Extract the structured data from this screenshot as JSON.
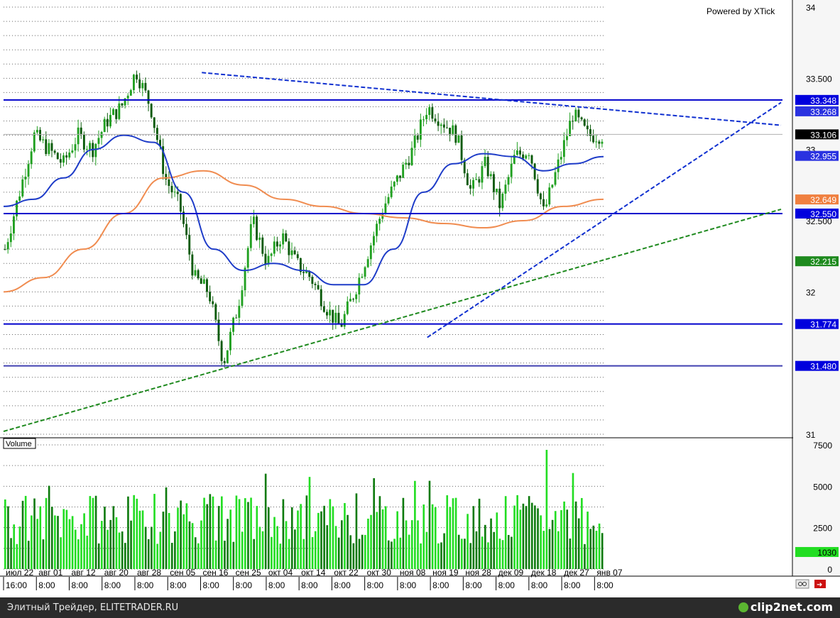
{
  "chart_data": [
    {
      "type": "candlestick",
      "title": "",
      "watermark": "Powered by XTick",
      "ylim": [
        31,
        34
      ],
      "y_ticks": [
        "34",
        "33.500",
        "33",
        "32.500",
        "32",
        "31"
      ],
      "x_date_labels": [
        "июл 22",
        "авг 01",
        "авг 12",
        "авг 20",
        "авг 28",
        "сен 05",
        "сен 16",
        "сен 25",
        "окт 04",
        "окт 14",
        "окт 22",
        "окт 30",
        "ноя 08",
        "ноя 19",
        "ноя 28",
        "дек 09",
        "дек 18",
        "дек 27",
        "янв 07"
      ],
      "x_time_labels": [
        "16:00",
        "8:00",
        "8:00",
        "8:00",
        "8:00",
        "8:00",
        "8:00",
        "8:00",
        "8:00",
        "8:00",
        "8:00",
        "8:00",
        "8:00",
        "8:00",
        "8:00",
        "8:00",
        "8:00",
        "8:00",
        "8:00"
      ],
      "price_waypoints": [
        32.3,
        32.7,
        33.1,
        33.0,
        32.9,
        33.1,
        33.0,
        33.2,
        33.3,
        33.55,
        33.3,
        32.8,
        32.6,
        32.1,
        32.0,
        31.5,
        31.9,
        32.5,
        32.2,
        32.4,
        32.2,
        32.1,
        31.9,
        31.75,
        32.0,
        32.3,
        32.6,
        32.8,
        33.0,
        33.3,
        33.2,
        33.1,
        32.7,
        32.9,
        32.6,
        32.95,
        33.0,
        32.55,
        32.9,
        33.25,
        33.1,
        33.1
      ],
      "ma_blue": [
        32.6,
        32.65,
        32.8,
        33.0,
        33.1,
        33.05,
        32.7,
        32.3,
        32.15,
        32.2,
        32.15,
        32.05,
        32.05,
        32.3,
        32.7,
        32.9,
        32.97,
        32.95,
        32.85,
        32.9,
        32.95
      ],
      "ma_orange": [
        32.0,
        32.1,
        32.3,
        32.55,
        32.8,
        32.85,
        32.75,
        32.65,
        32.6,
        32.55,
        32.52,
        32.48,
        32.45,
        32.5,
        32.6,
        32.65
      ],
      "horizontal_levels": [
        {
          "price": "33.348",
          "color": "#0000cc",
          "label_color": "#ffffff",
          "bg": "#0000dd"
        },
        {
          "price": "33.268",
          "color": "none",
          "label_color": "#ffffff",
          "bg": "#2a32e0"
        },
        {
          "price": "33.106",
          "color": "#b0b0b0",
          "label_color": "#ffffff",
          "bg": "#000000"
        },
        {
          "price": "32.955",
          "color": "none",
          "label_color": "#ffffff",
          "bg": "#2a32e0"
        },
        {
          "price": "32.649",
          "color": "none",
          "label_color": "#ffffff",
          "bg": "#f08040"
        },
        {
          "price": "32.550",
          "color": "#0000cc",
          "label_color": "#ffffff",
          "bg": "#0000dd"
        },
        {
          "price": "32.215",
          "color": "none",
          "label_color": "#ffffff",
          "bg": "#1e8a1e"
        },
        {
          "price": "31.774",
          "color": "#0000cc",
          "label_color": "#ffffff",
          "bg": "#0000dd"
        },
        {
          "price": "31.480",
          "color": "#4040b0",
          "label_color": "#ffffff",
          "bg": "#0000dd"
        }
      ],
      "trendlines": [
        {
          "name": "resistance",
          "color": "#1030d0",
          "style": "dashed",
          "from": [
            0.255,
            33.54
          ],
          "to": [
            1.0,
            33.17
          ]
        },
        {
          "name": "support-blue",
          "color": "#1030d0",
          "style": "dashed",
          "from": [
            0.545,
            31.68
          ],
          "to": [
            1.0,
            33.33
          ]
        },
        {
          "name": "support-green",
          "color": "#1f8a1f",
          "style": "dashed",
          "from": [
            0.0,
            31.02
          ],
          "to": [
            1.0,
            32.58
          ]
        }
      ],
      "colors": {
        "candle_up": "#20a020",
        "candle_down": "#0a5a0a",
        "ma_blue": "#1e3cc8",
        "ma_orange": "#f08c50"
      }
    },
    {
      "type": "bar",
      "label": "Volume",
      "ylim": [
        0,
        7500
      ],
      "y_ticks": [
        "7500",
        "5000",
        "2500",
        "0"
      ],
      "last_value": "1030",
      "colors": {
        "bright": "#22dd22",
        "dark": "#0d7a0d"
      }
    }
  ],
  "footer": {
    "left_text": "Элитный Трейдер, ELITETRADER.RU",
    "logo_text": "clip2net.com"
  }
}
